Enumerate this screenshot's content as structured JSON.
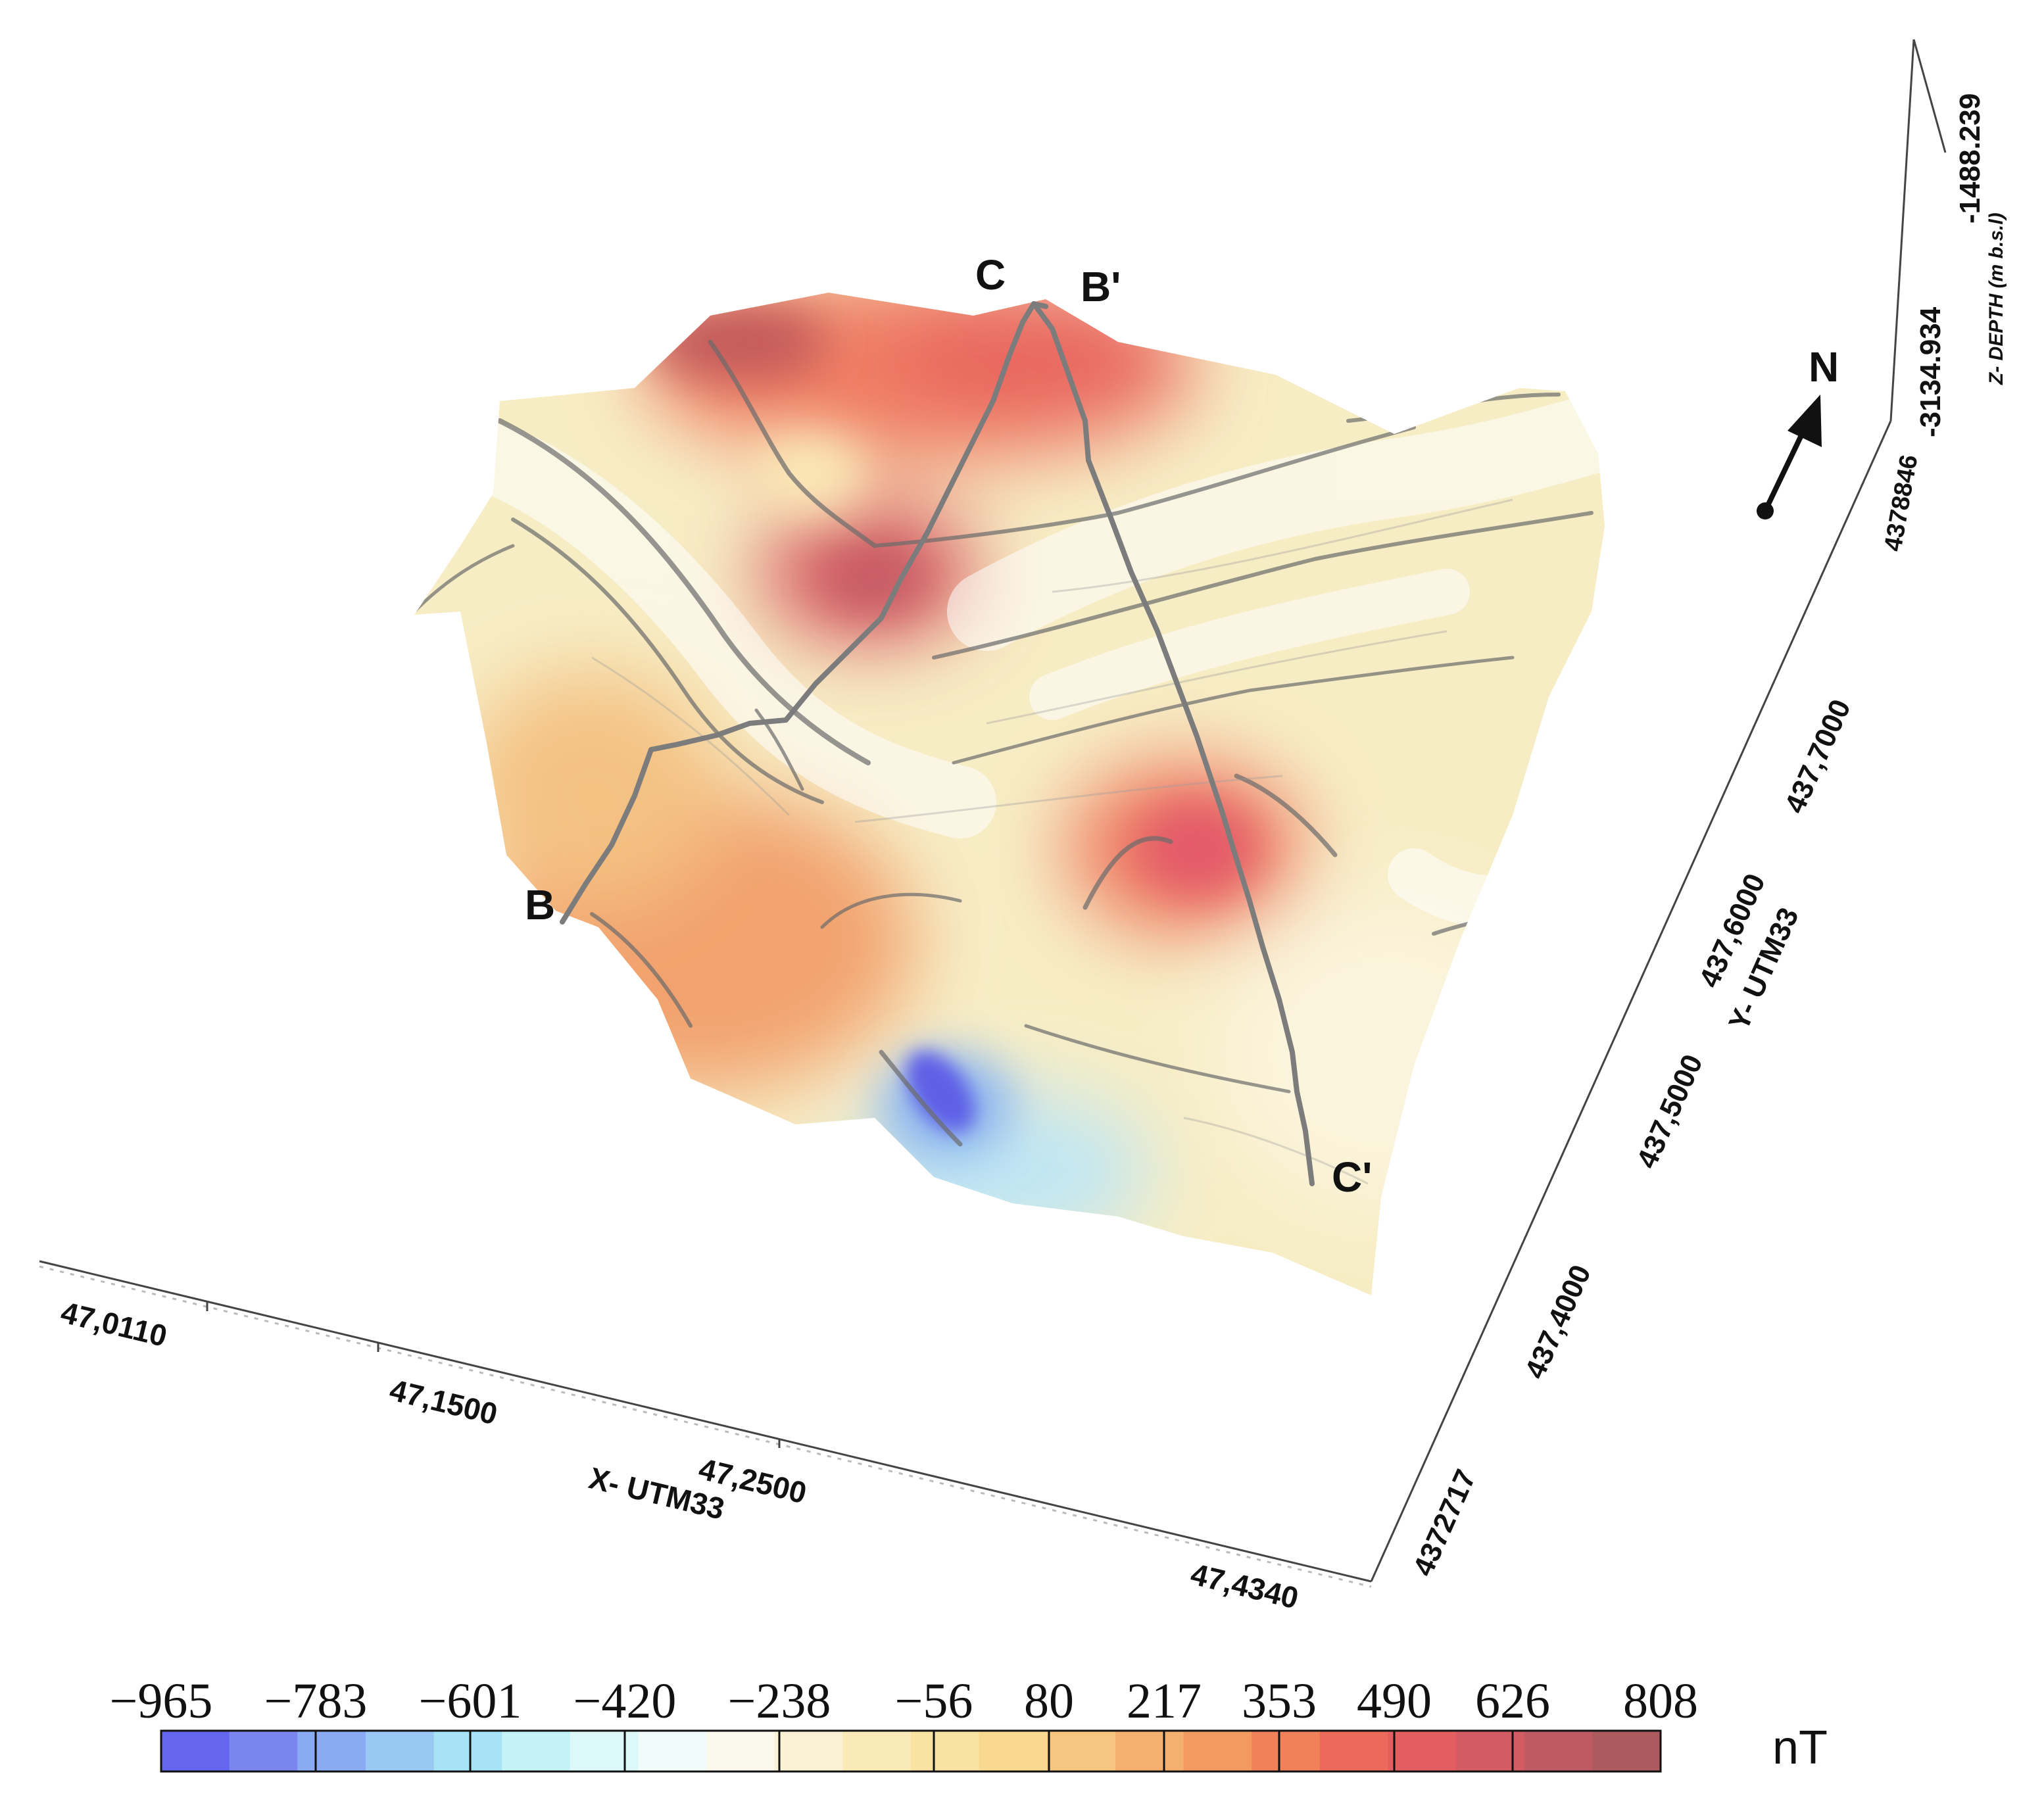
{
  "map": {
    "profiles": [
      {
        "start": "B",
        "end": "B'"
      },
      {
        "start": "C",
        "end": "C'"
      }
    ],
    "north_label": "N",
    "x_axis": {
      "title": "X- UTM33",
      "ticks": [
        "47,0110",
        "47,1500",
        "47,2500",
        "47,4340"
      ]
    },
    "y_axis": {
      "title": "Y- UTM33",
      "ticks": [
        "4372717",
        "437,4000",
        "437,5000",
        "437,6000",
        "437,7000",
        "4378846"
      ]
    },
    "z_axis": {
      "title": "Z- DEPTH (m b.s.l)",
      "ticks": [
        "-3134.934",
        "-1488.239"
      ]
    }
  },
  "colorbar": {
    "unit": "nT",
    "ticks": [
      "−965",
      "−783",
      "−601",
      "−420",
      "−238",
      "−56",
      "80",
      "217",
      "353",
      "490",
      "626",
      "808"
    ],
    "colors": [
      "#6466f0",
      "#7a86ee",
      "#8aaaf2",
      "#99c8f3",
      "#a8e2f5",
      "#c4f2f7",
      "#ddf8f8",
      "#f1fbfa",
      "#fbf8ec",
      "#fbf1d4",
      "#f9eab8",
      "#f9e3a3",
      "#f8d98f",
      "#f6c680",
      "#f4b06e",
      "#f29a60",
      "#f08159",
      "#ec6a5c",
      "#e25e60",
      "#d35b62",
      "#c05a62",
      "#ac5a60"
    ]
  }
}
